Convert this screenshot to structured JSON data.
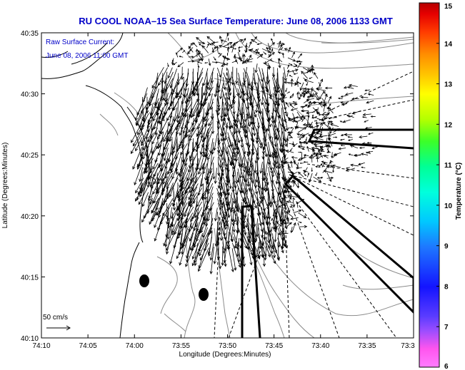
{
  "chart_data": {
    "type": "vector-field map",
    "title": "RU COOL  NOAA–15  Sea Surface Temperature:  June 08, 2006 1133 GMT",
    "overlay_lines": [
      "Raw Surface Current:",
      "June 08, 2006 11:00 GMT"
    ],
    "xlabel": "Longitude (Degrees:Minutes)",
    "ylabel": "Latitude (Degrees:Minutes)",
    "x_ticks": [
      "74:10",
      "74:05",
      "74:00",
      "73:55",
      "73:50",
      "73:45",
      "73:40",
      "73:35",
      "73:3"
    ],
    "y_ticks": [
      "40:35",
      "40:30",
      "40:25",
      "40:20",
      "40:15",
      "40:10"
    ],
    "xlim": [
      -74.1667,
      -73.5
    ],
    "ylim": [
      40.1667,
      40.5833
    ],
    "scale_label": "50 cm/s",
    "colorbar": {
      "label": "Temperature (°C)",
      "ticks": [
        "15",
        "14",
        "13",
        "12",
        "11",
        "10",
        "9",
        "8",
        "7",
        "6"
      ],
      "range": [
        6,
        15
      ]
    },
    "colors": {
      "title": "#0000c8",
      "overlay_text": "#0000c8",
      "coast": "#000000",
      "depth_contours": "#8c8c8c",
      "vectors": "#000000"
    }
  }
}
